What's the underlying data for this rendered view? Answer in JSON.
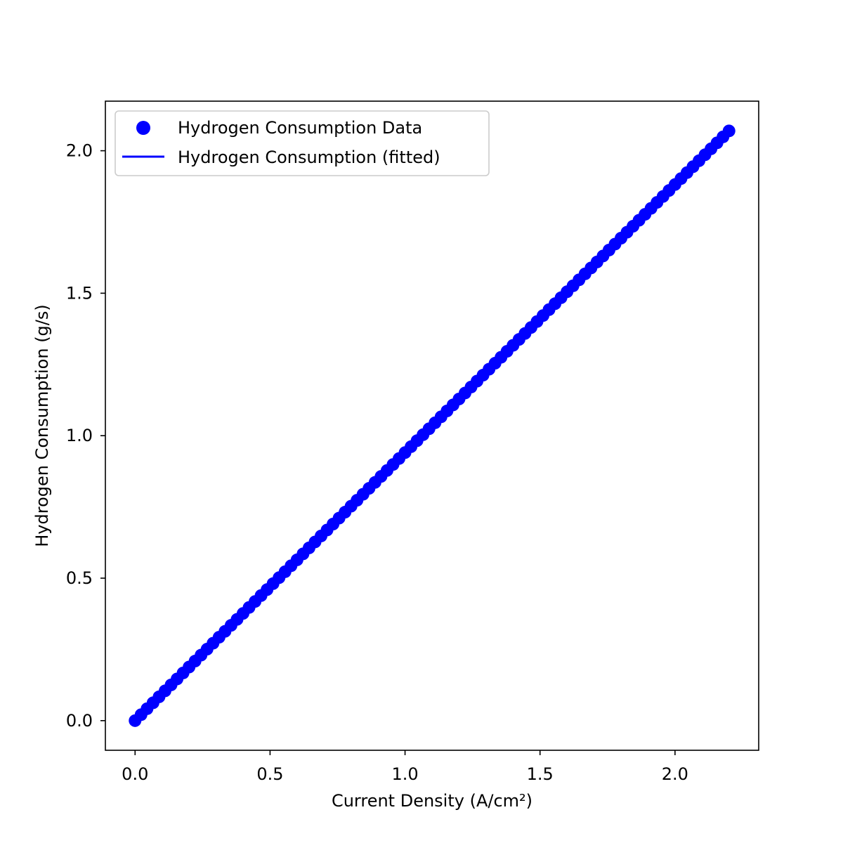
{
  "chart_data": {
    "type": "scatter",
    "xlabel": "Current Density (A/cm²)",
    "ylabel": "Hydrogen Consumption (g/s)",
    "xlim": [
      -0.11,
      2.31
    ],
    "ylim": [
      -0.104,
      2.174
    ],
    "xticks": [
      0.0,
      0.5,
      1.0,
      1.5,
      2.0
    ],
    "xtick_labels": [
      "0.0",
      "0.5",
      "1.0",
      "1.5",
      "2.0"
    ],
    "yticks": [
      0.0,
      0.5,
      1.0,
      1.5,
      2.0
    ],
    "ytick_labels": [
      "0.0",
      "0.5",
      "1.0",
      "1.5",
      "2.0"
    ],
    "grid": false,
    "legend_position": "top-left",
    "x_range": [
      0.0,
      2.2
    ],
    "point_count": 100,
    "slope": 0.9407,
    "intercept": 0.0,
    "series": [
      {
        "name": "Hydrogen Consumption Data",
        "kind": "markers",
        "color": "#0000ff"
      },
      {
        "name": "Hydrogen Consumption (fitted)",
        "kind": "line",
        "color": "#0000ff"
      }
    ]
  }
}
